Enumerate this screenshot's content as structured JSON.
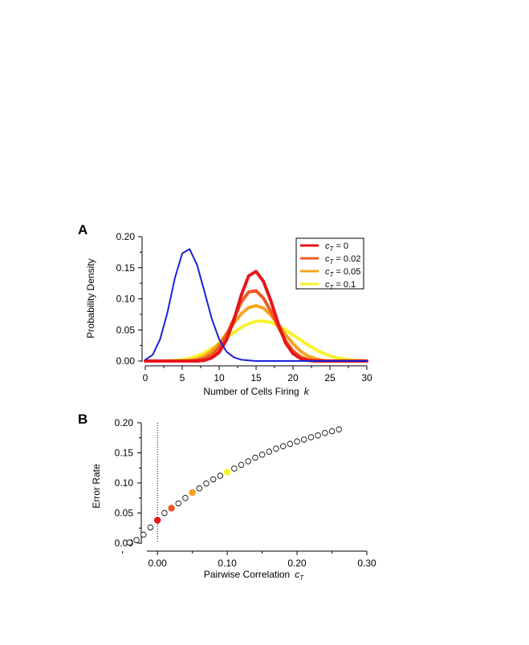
{
  "figure": {
    "panel_a_letter": "A",
    "panel_b_letter": "B"
  },
  "chart_data": [
    {
      "panel": "A",
      "type": "line",
      "xlabel": "Number of Cells Firing",
      "xlabel_var": "k",
      "ylabel": "Probability Density",
      "xlim": [
        0,
        30
      ],
      "ylim": [
        0,
        0.2
      ],
      "x_ticks": [
        "0",
        "5",
        "10",
        "15",
        "20",
        "25",
        "30"
      ],
      "y_ticks": [
        "0.00",
        "0.05",
        "0.10",
        "0.15",
        "0.20"
      ],
      "grid": false,
      "legend_position": "top-right",
      "legend": [
        {
          "var": "c",
          "sub": "T",
          "value": " = 0",
          "color": "#e8151b"
        },
        {
          "var": "c",
          "sub": "T",
          "value": " = 0.02",
          "color": "#f05a22"
        },
        {
          "var": "c",
          "sub": "T",
          "value": " = 0.05",
          "color": "#f7a21d"
        },
        {
          "var": "c",
          "sub": "T",
          "value": " = 0.1",
          "color": "#f9f22b"
        }
      ],
      "series": [
        {
          "color": "#1a22d8",
          "x": [
            0,
            1,
            2,
            3,
            4,
            5,
            6,
            7,
            8,
            9,
            10,
            11,
            12,
            13,
            14,
            15,
            16,
            17,
            18,
            19,
            20,
            21,
            22,
            23,
            24,
            25,
            26,
            27,
            28,
            29,
            30
          ],
          "y": [
            0.002,
            0.01,
            0.035,
            0.078,
            0.133,
            0.173,
            0.18,
            0.155,
            0.112,
            0.068,
            0.035,
            0.015,
            0.006,
            0.002,
            0.001,
            0,
            0,
            0,
            0,
            0,
            0,
            0,
            0,
            0,
            0,
            0,
            0,
            0,
            0,
            0,
            0
          ]
        },
        {
          "color": "#e8151b",
          "x": [
            0,
            1,
            2,
            3,
            4,
            5,
            6,
            7,
            8,
            9,
            10,
            11,
            12,
            13,
            14,
            15,
            16,
            17,
            18,
            19,
            20,
            21,
            22,
            23,
            24,
            25,
            26,
            27,
            28,
            29,
            30
          ],
          "y": [
            0,
            0,
            0,
            0,
            0,
            0,
            0,
            0,
            0.001,
            0.005,
            0.014,
            0.034,
            0.066,
            0.106,
            0.137,
            0.144,
            0.128,
            0.097,
            0.06,
            0.029,
            0.012,
            0.004,
            0.001,
            0,
            0,
            0,
            0,
            0,
            0,
            0,
            0
          ]
        },
        {
          "color": "#f05a22",
          "x": [
            0,
            1,
            2,
            3,
            4,
            5,
            6,
            7,
            8,
            9,
            10,
            11,
            12,
            13,
            14,
            15,
            16,
            17,
            18,
            19,
            20,
            21,
            22,
            23,
            24,
            25,
            26,
            27,
            28,
            29,
            30
          ],
          "y": [
            0,
            0,
            0,
            0,
            0,
            0,
            0,
            0.001,
            0.004,
            0.01,
            0.022,
            0.042,
            0.068,
            0.095,
            0.111,
            0.113,
            0.101,
            0.08,
            0.055,
            0.032,
            0.016,
            0.007,
            0.002,
            0.001,
            0,
            0,
            0,
            0,
            0,
            0,
            0
          ]
        },
        {
          "color": "#f7a21d",
          "x": [
            0,
            1,
            2,
            3,
            4,
            5,
            6,
            7,
            8,
            9,
            10,
            11,
            12,
            13,
            14,
            15,
            16,
            17,
            18,
            19,
            20,
            21,
            22,
            23,
            24,
            25,
            26,
            27,
            28,
            29,
            30
          ],
          "y": [
            0,
            0,
            0,
            0,
            0,
            0,
            0.001,
            0.003,
            0.008,
            0.016,
            0.028,
            0.044,
            0.061,
            0.076,
            0.086,
            0.089,
            0.085,
            0.074,
            0.059,
            0.042,
            0.028,
            0.016,
            0.008,
            0.004,
            0.001,
            0,
            0,
            0,
            0,
            0,
            0
          ]
        },
        {
          "color": "#f9f22b",
          "x": [
            0,
            1,
            2,
            3,
            4,
            5,
            6,
            7,
            8,
            9,
            10,
            11,
            12,
            13,
            14,
            15,
            16,
            17,
            18,
            19,
            20,
            21,
            22,
            23,
            24,
            25,
            26,
            27,
            28,
            29,
            30
          ],
          "y": [
            0,
            0,
            0,
            0,
            0.001,
            0.002,
            0.004,
            0.008,
            0.013,
            0.02,
            0.028,
            0.037,
            0.046,
            0.054,
            0.06,
            0.064,
            0.064,
            0.062,
            0.057,
            0.05,
            0.042,
            0.034,
            0.026,
            0.019,
            0.013,
            0.008,
            0.005,
            0.003,
            0.001,
            0.001,
            0
          ]
        }
      ]
    },
    {
      "panel": "B",
      "type": "scatter",
      "xlabel": "Pairwise Correlation",
      "xlabel_var": "c",
      "xlabel_sub": "T",
      "ylabel": "Error Rate",
      "xlim": [
        -0.06,
        0.3
      ],
      "ylim": [
        0,
        0.2
      ],
      "x_ticks": [
        "0.00",
        "0.10",
        "0.20",
        "0.30"
      ],
      "y_ticks": [
        "0.00",
        "0.05",
        "0.10",
        "0.15",
        "0.20"
      ],
      "grid": false,
      "reference_line_x": 0,
      "open_points": {
        "x": [
          -0.04,
          -0.03,
          -0.02,
          -0.01,
          0.01,
          0.03,
          0.04,
          0.06,
          0.07,
          0.08,
          0.09,
          0.11,
          0.12,
          0.13,
          0.14,
          0.15,
          0.16,
          0.17,
          0.18,
          0.19,
          0.2,
          0.21,
          0.22,
          0.23,
          0.24,
          0.25,
          0.26
        ],
        "y": [
          0.001,
          0.005,
          0.014,
          0.026,
          0.05,
          0.066,
          0.075,
          0.091,
          0.099,
          0.106,
          0.112,
          0.124,
          0.13,
          0.136,
          0.142,
          0.147,
          0.152,
          0.157,
          0.161,
          0.165,
          0.169,
          0.172,
          0.176,
          0.179,
          0.183,
          0.186,
          0.189
        ]
      },
      "highlighted_points": [
        {
          "x": 0,
          "y": 0.038,
          "color": "#e8151b"
        },
        {
          "x": 0.02,
          "y": 0.058,
          "color": "#f05a22"
        },
        {
          "x": 0.05,
          "y": 0.084,
          "color": "#f7a21d"
        },
        {
          "x": 0.1,
          "y": 0.118,
          "color": "#f9f22b"
        }
      ]
    }
  ]
}
